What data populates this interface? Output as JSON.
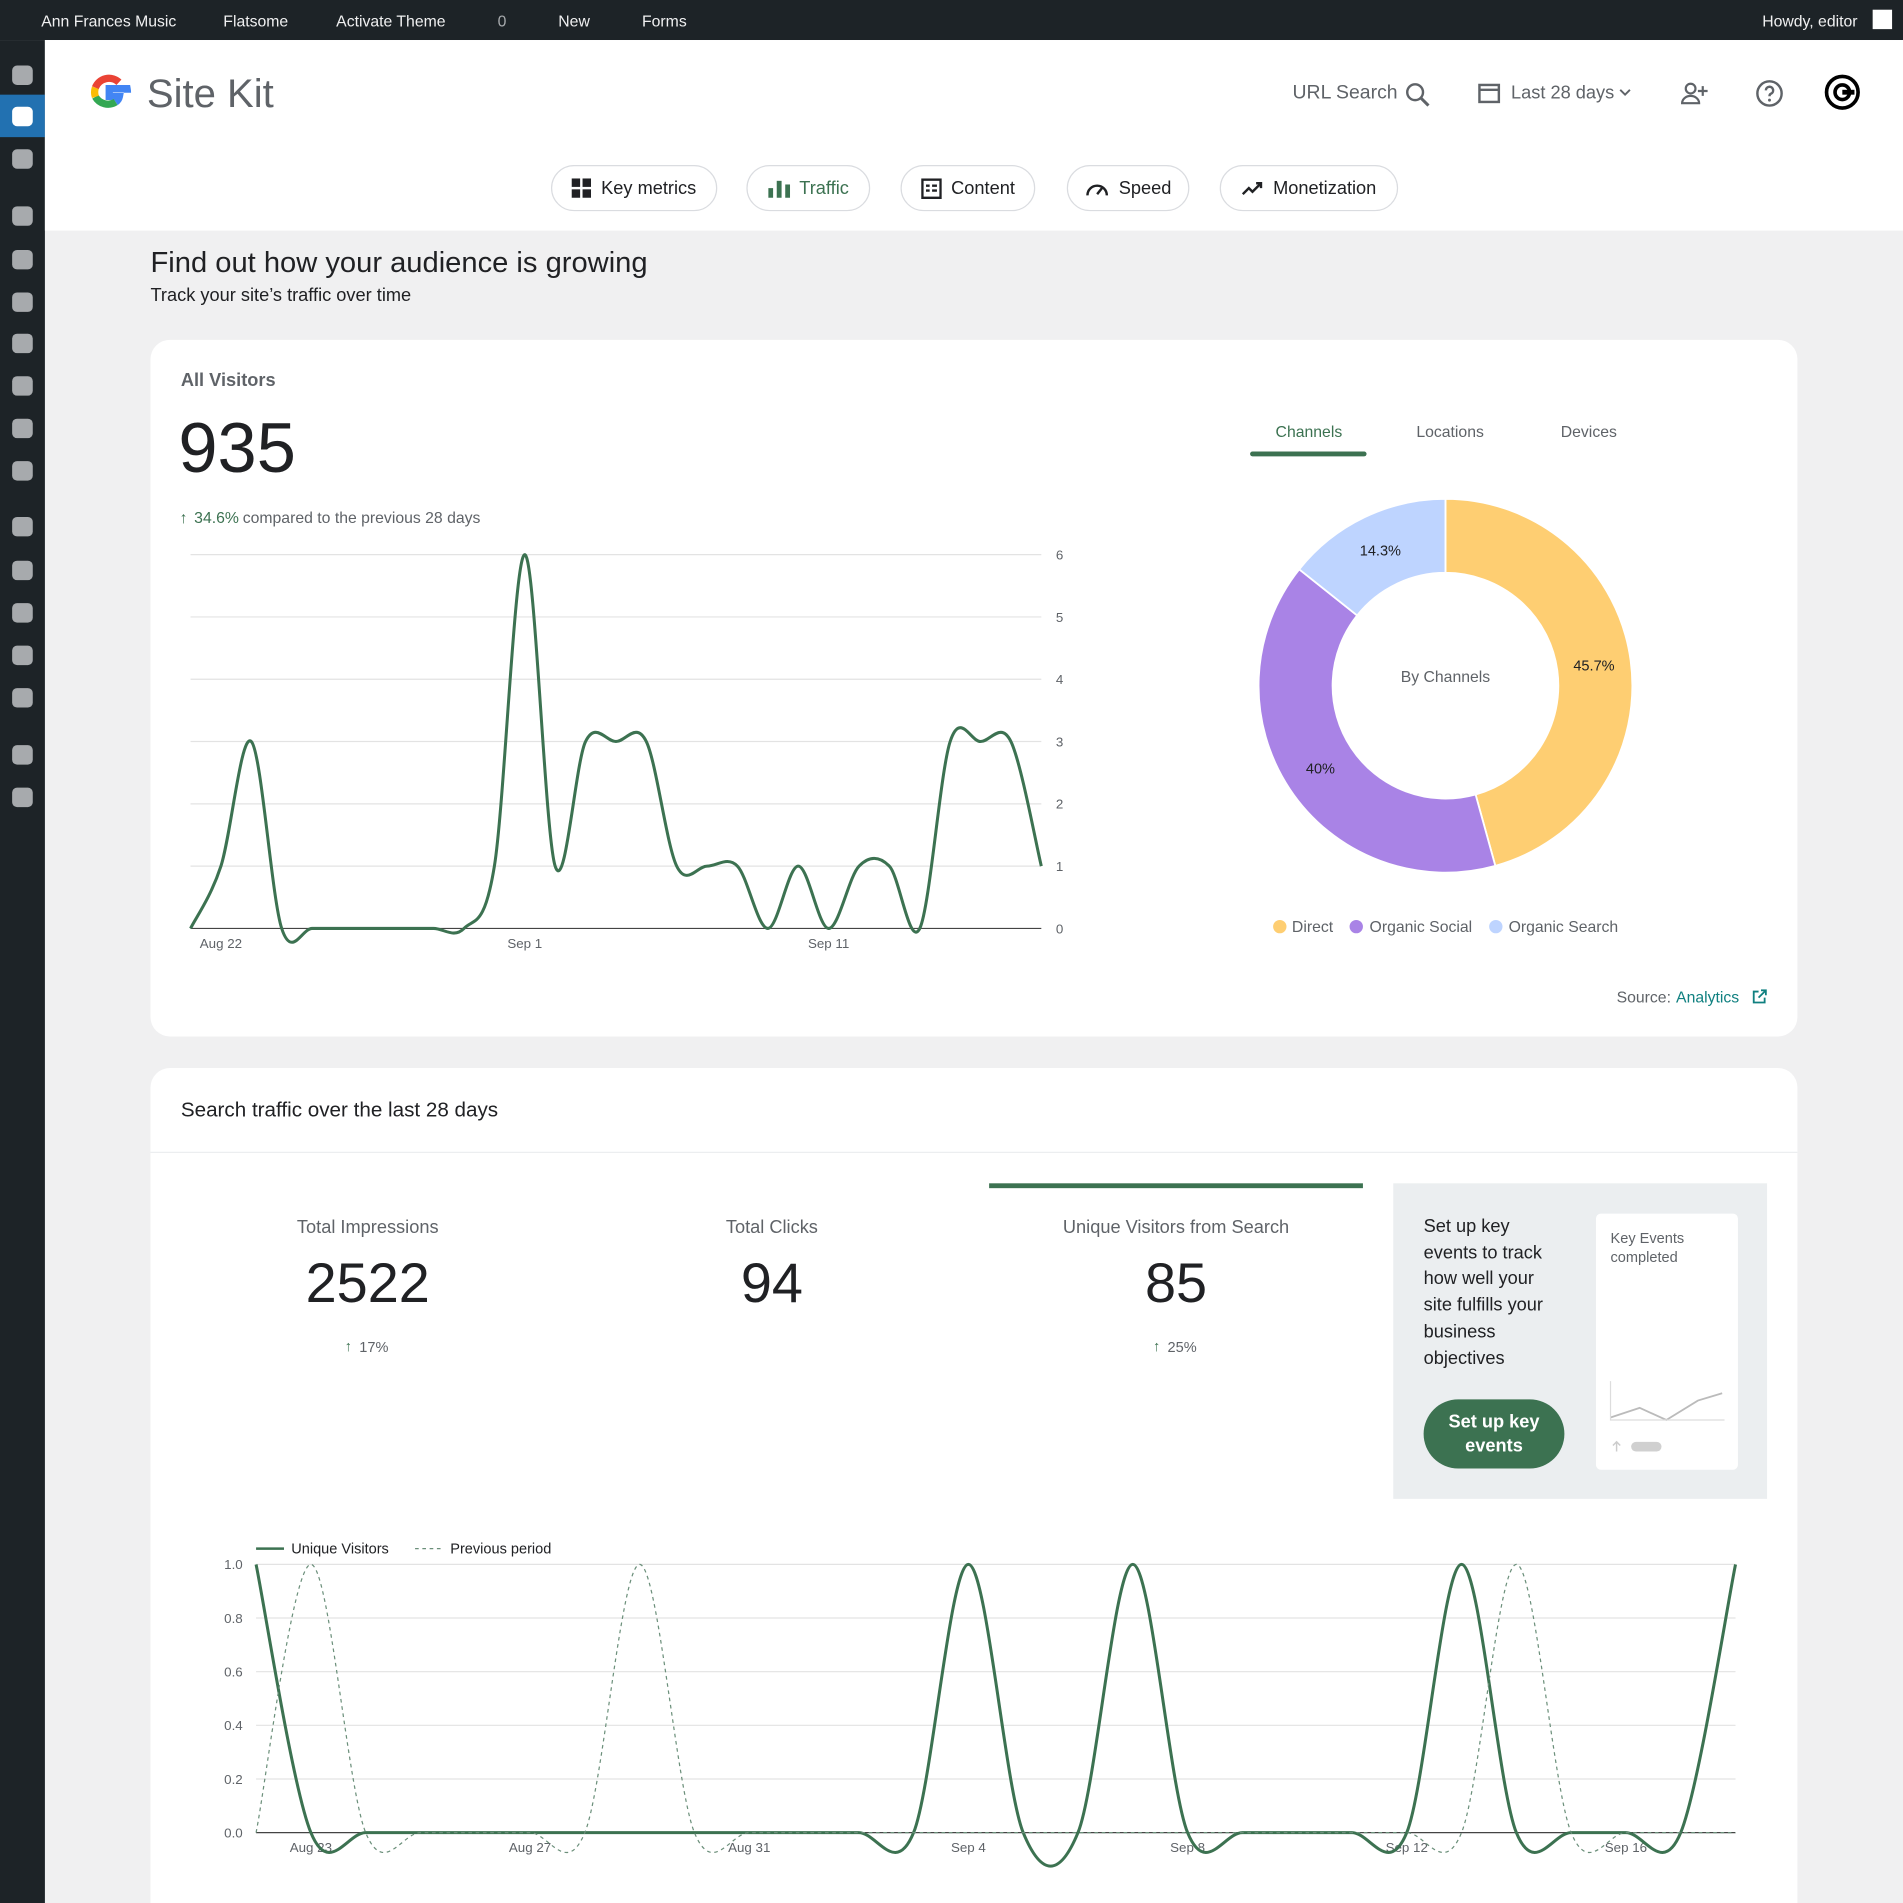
{
  "admin_bar": {
    "site": "Ann Frances Music",
    "theme": "Flatsome",
    "activate": "Activate Theme",
    "comments": "0",
    "new": "New",
    "forms": "Forms",
    "greeting": "Howdy, editor"
  },
  "header": {
    "title": "Site Kit",
    "url_search": "URL Search",
    "date_range": "Last 28 days"
  },
  "nav_tabs": [
    "Key metrics",
    "Traffic",
    "Content",
    "Speed",
    "Monetization"
  ],
  "intro": {
    "title": "Find out how your audience is growing",
    "subtitle": "Track your site’s traffic over time"
  },
  "visitors_card": {
    "label": "All Visitors",
    "total": 935,
    "change": "34.6%",
    "comparison": "compared to the previous 28 days",
    "tabs": [
      "Channels",
      "Locations",
      "Devices"
    ],
    "source_label": "Source:",
    "source_link": "Analytics"
  },
  "search_card": {
    "title": "Search traffic over the last 28 days",
    "metrics": [
      {
        "label": "Total Impressions",
        "value": 2522,
        "change": "17%"
      },
      {
        "label": "Total Clicks",
        "value": 94
      },
      {
        "label": "Unique Visitors from Search",
        "value": 85,
        "change": "25%"
      }
    ],
    "key_events": {
      "text": "Set up key events to track how well your site fulfills your business objectives",
      "button": "Set up key events",
      "preview": "Key Events completed"
    }
  },
  "chart_data": [
    {
      "type": "line",
      "categories": [
        null,
        "Aug 22",
        null,
        null,
        null,
        null,
        null,
        null,
        null,
        null,
        null,
        "Sep 1",
        null,
        null,
        null,
        null,
        null,
        null,
        null,
        null,
        null,
        "Sep 11",
        null,
        null,
        null,
        null,
        null,
        null,
        null
      ],
      "values": [
        0,
        1,
        3,
        0,
        0,
        0,
        0,
        0,
        0,
        0,
        1,
        6,
        1,
        3,
        3,
        3,
        1,
        1,
        1,
        0,
        1,
        0,
        1,
        1,
        0,
        3,
        3,
        3,
        1
      ],
      "color": "#3c7251",
      "ylim": [
        0,
        6
      ],
      "yticks": [
        0,
        1,
        2,
        3,
        4,
        5,
        6
      ],
      "grid": true
    },
    {
      "type": "pie",
      "center_label": "By Channels",
      "categories": [
        "Direct",
        "Organic Social",
        "Organic Search"
      ],
      "values": [
        45.7,
        40,
        14.3
      ],
      "value_labels": [
        "45.7%",
        "40%",
        "14.3%"
      ],
      "colors": [
        "#fece72",
        "#a983e6",
        "#bed4ff"
      ]
    },
    {
      "type": "line",
      "categories": [
        null,
        "Aug 23",
        null,
        null,
        null,
        "Aug 27",
        null,
        null,
        null,
        "Aug 31",
        null,
        null,
        null,
        "Sep 4",
        null,
        null,
        null,
        "Sep 8",
        null,
        null,
        null,
        "Sep 12",
        null,
        null,
        null,
        "Sep 16",
        null,
        null
      ],
      "series": [
        {
          "name": "Unique Visitors",
          "color": "#3c7251",
          "dashed": false,
          "values": [
            1,
            0,
            0,
            0,
            0,
            0,
            0,
            0,
            0,
            0,
            0,
            0,
            0,
            1,
            0,
            0,
            1,
            0,
            0,
            0,
            0,
            0,
            1,
            0,
            0,
            0,
            0,
            1
          ]
        },
        {
          "name": "Previous period",
          "color": "#6b8f7a",
          "dashed": true,
          "values": [
            0,
            1,
            0,
            0,
            0,
            0,
            0,
            1,
            0,
            0,
            0,
            0,
            0,
            0,
            0,
            0,
            0,
            0,
            0,
            0,
            0,
            0,
            0,
            1,
            0,
            0,
            0,
            0
          ]
        }
      ],
      "ylim": [
        0,
        1
      ],
      "yticks": [
        {
          "value": 0,
          "label": "0.0"
        },
        0.2,
        0.4,
        0.6,
        0.8,
        {
          "value": 1,
          "label": "1.0"
        }
      ],
      "grid": true
    }
  ]
}
